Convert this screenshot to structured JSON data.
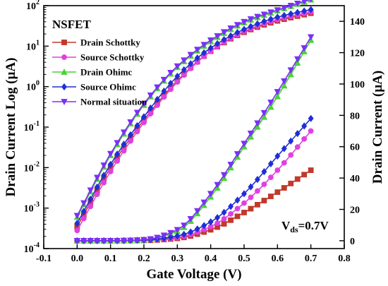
{
  "chart_data": {
    "type": "line",
    "legend_title": "NSFET",
    "legend_position": "top-left",
    "annotation": {
      "main": "V",
      "sub": "ds",
      "rest": "=0.7V"
    },
    "xlabel": "Gate Voltage (V)",
    "ylabel_left": "Drain Current Log (µA)",
    "ylabel_right": "Drain Current (µA)",
    "xlim": [
      -0.1,
      0.8
    ],
    "ylim_left_log": [
      0.0001,
      100
    ],
    "ylim_right": [
      -5,
      150
    ],
    "x_ticks": [
      "-0.1",
      "0.0",
      "0.1",
      "0.2",
      "0.3",
      "0.4",
      "0.5",
      "0.6",
      "0.7",
      "0.8"
    ],
    "x_tick_values": [
      -0.1,
      0.0,
      0.1,
      0.2,
      0.3,
      0.4,
      0.5,
      0.6,
      0.7,
      0.8
    ],
    "y_left_ticks": [
      {
        "value": 0.0001,
        "base": "10",
        "exp": "-4"
      },
      {
        "value": 0.001,
        "base": "10",
        "exp": "-3"
      },
      {
        "value": 0.01,
        "base": "10",
        "exp": "-2"
      },
      {
        "value": 0.1,
        "base": "10",
        "exp": "-1"
      },
      {
        "value": 1,
        "base": "10",
        "exp": "0"
      },
      {
        "value": 10,
        "base": "10",
        "exp": "1"
      },
      {
        "value": 100,
        "base": "10",
        "exp": "2"
      }
    ],
    "y_right_ticks": [
      "0",
      "20",
      "40",
      "60",
      "80",
      "100",
      "120",
      "140"
    ],
    "y_right_tick_values": [
      0,
      20,
      40,
      60,
      80,
      100,
      120,
      140
    ],
    "x": [
      0.0,
      0.1,
      0.2,
      0.3,
      0.4,
      0.5,
      0.6,
      0.7
    ],
    "series": [
      {
        "name": "Drain Schottky",
        "color": "#c0392b",
        "marker": "square",
        "log_values": [
          0.00035,
          0.01,
          0.15,
          1.4,
          7.5,
          22,
          42,
          65
        ],
        "linear_values": [
          0,
          0,
          0.2,
          1.5,
          7,
          18,
          31,
          45
        ]
      },
      {
        "name": "Source Schottky",
        "color": "#e040e0",
        "marker": "circle",
        "log_values": [
          0.00028,
          0.008,
          0.13,
          1.3,
          7.5,
          23,
          45,
          70
        ],
        "linear_values": [
          0,
          0,
          0.3,
          2,
          9,
          24,
          45,
          70
        ]
      },
      {
        "name": "Drain Ohimc",
        "color": "#4cd137",
        "marker": "triangle-up",
        "log_values": [
          0.0006,
          0.02,
          0.35,
          3.0,
          13,
          38,
          75,
          140
        ],
        "linear_values": [
          0,
          0,
          0.5,
          6,
          28,
          60,
          92,
          128
        ]
      },
      {
        "name": "Source Ohimc",
        "color": "#1f2fd6",
        "marker": "diamond",
        "log_values": [
          0.00042,
          0.012,
          0.18,
          1.8,
          9,
          26,
          52,
          80
        ],
        "linear_values": [
          0,
          0,
          0.4,
          3,
          12,
          30,
          54,
          78
        ]
      },
      {
        "name": "Normal situation",
        "color": "#7b2ff7",
        "marker": "triangle-down",
        "log_values": [
          0.00065,
          0.022,
          0.38,
          3.2,
          14,
          40,
          78,
          145
        ],
        "linear_values": [
          0,
          0,
          0.6,
          7,
          30,
          62,
          95,
          130
        ]
      }
    ]
  }
}
